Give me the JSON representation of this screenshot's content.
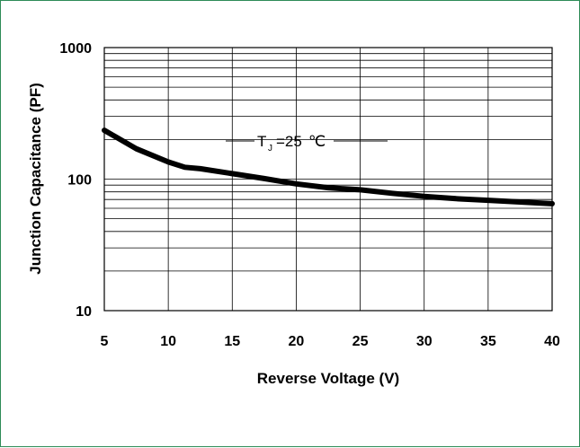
{
  "chart_data": {
    "type": "line",
    "xlabel": "Reverse Voltage (V)",
    "ylabel": "Junction Capacitance (PF)",
    "x_ticks": [
      "5",
      "10",
      "15",
      "20",
      "25",
      "30",
      "35",
      "40"
    ],
    "y_ticks": [
      "10",
      "100",
      "1000"
    ],
    "xlim": [
      5,
      40
    ],
    "ylim": [
      10,
      1000
    ],
    "y_scale": "log",
    "grid": true,
    "annotation": {
      "main": "T",
      "sub": "J",
      "rest": "=25",
      "unit": "℃"
    },
    "series": [
      {
        "x": [
          5,
          7.5,
          10,
          11.3,
          12.5,
          15,
          17.5,
          20,
          22.5,
          25,
          27.5,
          30,
          32.5,
          35,
          37.5,
          40
        ],
        "values": [
          235,
          170,
          135,
          123,
          120,
          110,
          101,
          92,
          86,
          83,
          78,
          74,
          71,
          69,
          67,
          65
        ]
      }
    ]
  }
}
